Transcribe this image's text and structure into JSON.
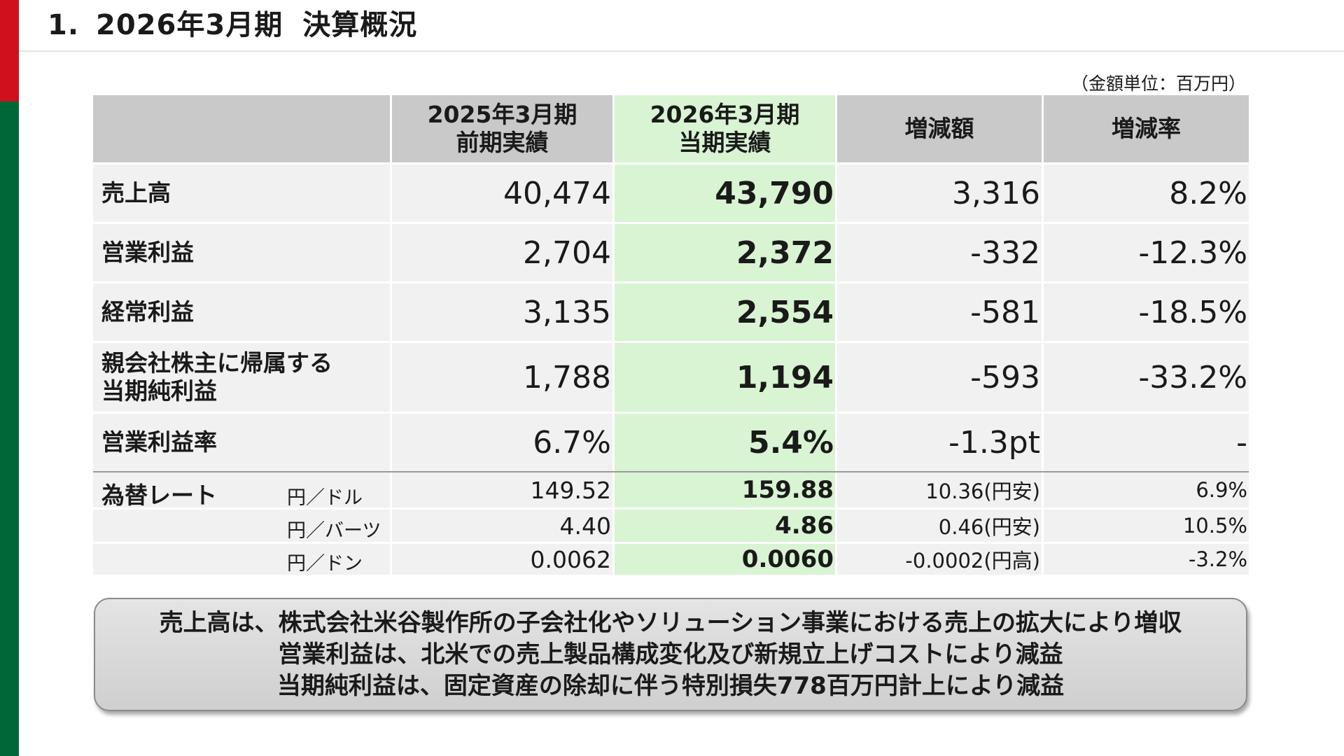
{
  "slide": {
    "number": "1.",
    "period": "2026年3月期",
    "heading": "決算概況",
    "unit_note": "（金額単位：百万円）"
  },
  "table": {
    "headers": [
      {
        "line1": "",
        "line2": ""
      },
      {
        "line1": "2025年3月期",
        "line2": "前期実績"
      },
      {
        "line1": "2026年3月期",
        "line2": "当期実績"
      },
      {
        "line1": "増減額",
        "line2": ""
      },
      {
        "line1": "増減率",
        "line2": ""
      }
    ],
    "rows": [
      {
        "label1": "売上高",
        "label2": "",
        "prev": "40,474",
        "curr": "43,790",
        "diff": "3,316",
        "rate": "8.2%"
      },
      {
        "label1": "営業利益",
        "label2": "",
        "prev": "2,704",
        "curr": "2,372",
        "diff": "-332",
        "rate": "-12.3%"
      },
      {
        "label1": "経常利益",
        "label2": "",
        "prev": "3,135",
        "curr": "2,554",
        "diff": "-581",
        "rate": "-18.5%"
      },
      {
        "label1": "親会社株主に帰属する",
        "label2": "当期純利益",
        "prev": "1,788",
        "curr": "1,194",
        "diff": "-593",
        "rate": "-33.2%"
      },
      {
        "label1": "営業利益率",
        "label2": "",
        "prev": "6.7%",
        "curr": "5.4%",
        "diff": "-1.3pt",
        "rate": "-"
      }
    ],
    "fx": {
      "title": "為替レート",
      "rows": [
        {
          "pair": "円／ドル",
          "prev": "149.52",
          "curr": "159.88",
          "diff": "10.36(円安)",
          "rate": "6.9%"
        },
        {
          "pair": "円／バーツ",
          "prev": "4.40",
          "curr": "4.86",
          "diff": "0.46(円安)",
          "rate": "10.5%"
        },
        {
          "pair": "円／ドン",
          "prev": "0.0062",
          "curr": "0.0060",
          "diff": "-0.0002(円高)",
          "rate": "-3.2%"
        }
      ]
    }
  },
  "summary": [
    "売上高は、株式会社米谷製作所の子会社化やソリューション事業における売上の拡大により増収",
    "営業利益は、北米での売上製品構成変化及び新規立上げコストにより減益",
    "当期純利益は、固定資産の除却に伴う特別損失778百万円計上により減益"
  ],
  "colors": {
    "accent_red": "#d0101d",
    "accent_green": "#006838",
    "current_period_highlight": "#d8f4d2",
    "header_gray": "#c9c9c9"
  }
}
